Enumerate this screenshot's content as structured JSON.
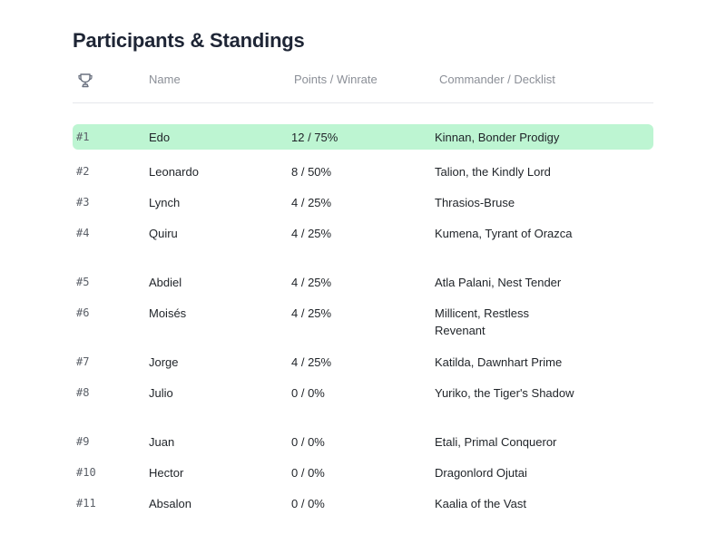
{
  "page": {
    "title": "Participants & Standings"
  },
  "table": {
    "headers": {
      "rank_icon": "trophy-icon",
      "name": "Name",
      "points": "Points / Winrate",
      "commander": "Commander / Decklist"
    },
    "rows": [
      {
        "rank": "#1",
        "name": "Edo",
        "points": "12 / 75%",
        "commander": "Kinnan, Bonder Prodigy",
        "highlighted": true
      },
      {
        "rank": "#2",
        "name": "Leonardo",
        "points": "8 / 50%",
        "commander": "Talion, the Kindly Lord"
      },
      {
        "rank": "#3",
        "name": "Lynch",
        "points": "4 / 25%",
        "commander": "Thrasios-Bruse"
      },
      {
        "rank": "#4",
        "name": "Quiru",
        "points": "4 / 25%",
        "commander": "Kumena, Tyrant of Orazca"
      },
      {
        "rank": "#5",
        "name": "Abdiel",
        "points": "4 / 25%",
        "commander": "Atla Palani, Nest Tender"
      },
      {
        "rank": "#6",
        "name": "Moisés",
        "points": "4 / 25%",
        "commander": "Millicent, Restless Revenant"
      },
      {
        "rank": "#7",
        "name": "Jorge",
        "points": "4 / 25%",
        "commander": "Katilda, Dawnhart Prime"
      },
      {
        "rank": "#8",
        "name": "Julio",
        "points": "0 / 0%",
        "commander": "Yuriko, the Tiger's Shadow"
      },
      {
        "rank": "#9",
        "name": "Juan",
        "points": "0 / 0%",
        "commander": "Etali, Primal Conqueror"
      },
      {
        "rank": "#10",
        "name": "Hector",
        "points": "0 / 0%",
        "commander": "Dragonlord Ojutai"
      },
      {
        "rank": "#11",
        "name": "Absalon",
        "points": "0 / 0%",
        "commander": "Kaalia of the Vast"
      }
    ]
  },
  "colors": {
    "highlight": "#bdf5d2",
    "text": "#1f2328",
    "header_text": "#8b8f97"
  }
}
